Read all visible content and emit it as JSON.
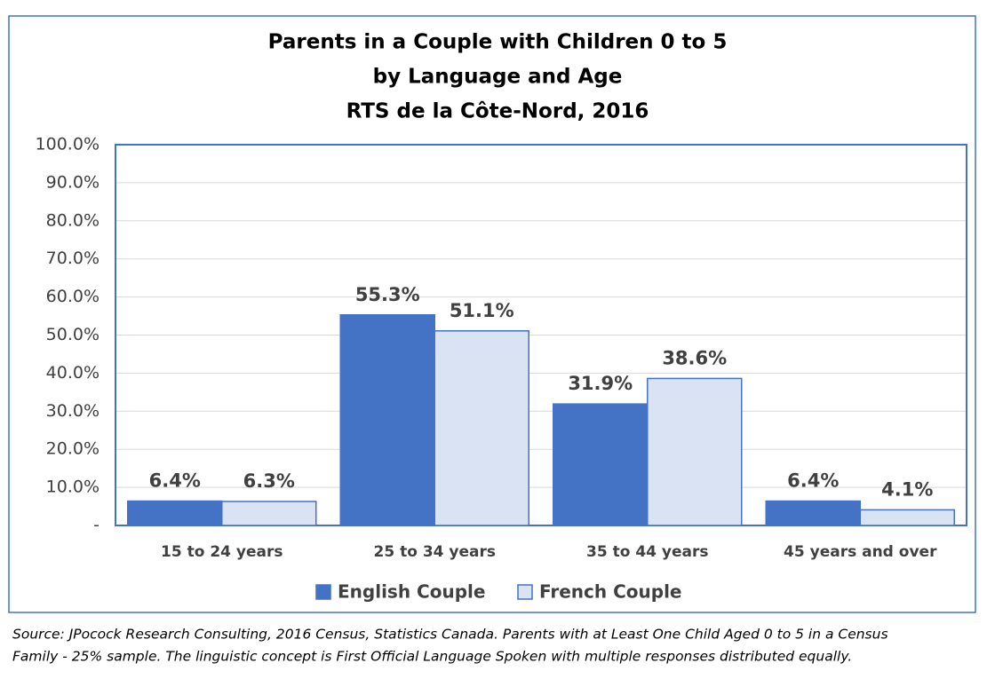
{
  "chart_data": {
    "type": "bar",
    "title": [
      "Parents in a Couple with Children 0 to 5",
      "by Language and Age",
      "RTS de la Côte-Nord, 2016"
    ],
    "categories": [
      "15 to 24 years",
      "25 to 34 years",
      "35 to 44 years",
      "45 years and over"
    ],
    "series": [
      {
        "name": "English Couple",
        "color": "#4472c4",
        "values": [
          6.4,
          55.3,
          31.9,
          6.4
        ],
        "value_labels": [
          "6.4%",
          "55.3%",
          "31.9%",
          "6.4%"
        ]
      },
      {
        "name": "French Couple",
        "color": "#dae3f3",
        "values": [
          6.3,
          51.1,
          38.6,
          4.1
        ],
        "value_labels": [
          "6.3%",
          "51.1%",
          "38.6%",
          "4.1%"
        ]
      }
    ],
    "ylim": [
      0,
      100
    ],
    "yticks": [
      {
        "value": 0,
        "label": "-"
      },
      {
        "value": 10,
        "label": "10.0%"
      },
      {
        "value": 20,
        "label": "20.0%"
      },
      {
        "value": 30,
        "label": "30.0%"
      },
      {
        "value": 40,
        "label": "40.0%"
      },
      {
        "value": 50,
        "label": "50.0%"
      },
      {
        "value": 60,
        "label": "60.0%"
      },
      {
        "value": 70,
        "label": "70.0%"
      },
      {
        "value": 80,
        "label": "80.0%"
      },
      {
        "value": 90,
        "label": "90.0%"
      },
      {
        "value": 100,
        "label": "100.0%"
      }
    ],
    "grid": true,
    "legend": "bottom",
    "source": [
      "Source: JPocock Research Consulting, 2016 Census, Statistics Canada. Parents with at Least One Child Aged 0 to 5 in a Census",
      "Family - 25% sample. The linguistic concept is First Official Language Spoken with multiple responses distributed equally."
    ]
  }
}
